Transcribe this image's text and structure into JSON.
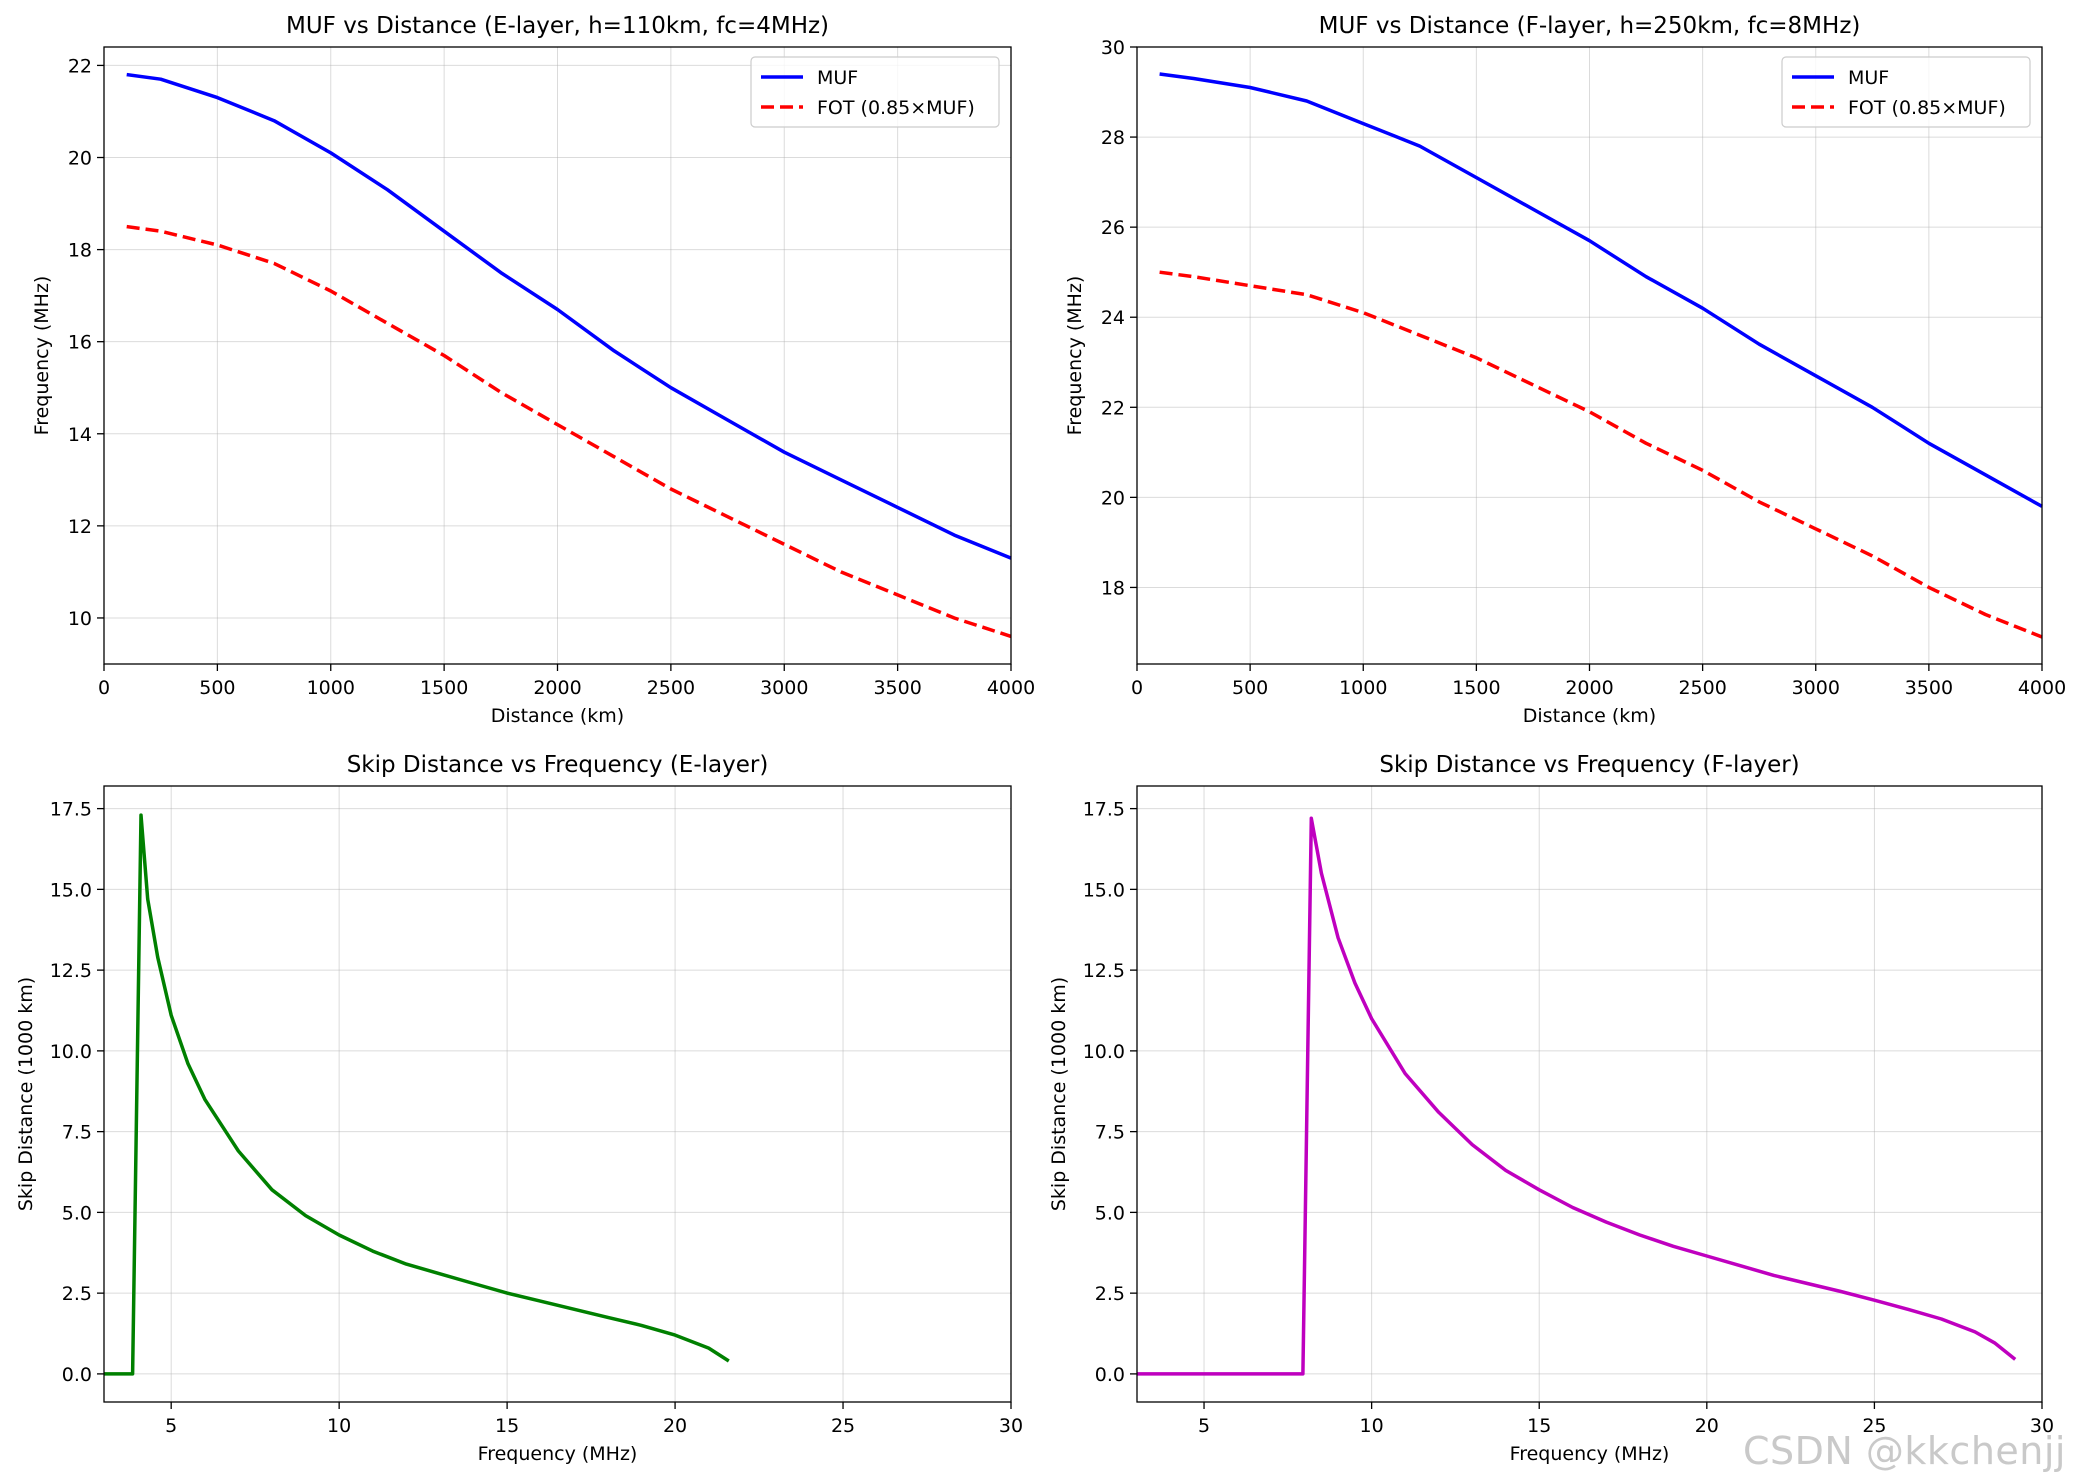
{
  "figure": {
    "watermark": "CSDN @kkchenjj"
  },
  "colors": {
    "muf": "#0000ff",
    "fot": "#ff0000",
    "skip_e": "#008000",
    "skip_f": "#bf00bf",
    "grid": "#b0b0b0"
  },
  "chart_data": [
    {
      "type": "line",
      "title": "MUF vs Distance (E-layer, h=110km, fc=4MHz)",
      "xlabel": "Distance (km)",
      "ylabel": "Frequency (MHz)",
      "xlim": [
        0,
        4000
      ],
      "ylim": [
        9,
        22.4
      ],
      "xticks": [
        0,
        500,
        1000,
        1500,
        2000,
        2500,
        3000,
        3500,
        4000
      ],
      "yticks": [
        10,
        12,
        14,
        16,
        18,
        20,
        22
      ],
      "legend": "top-right",
      "x": [
        100,
        250,
        500,
        750,
        1000,
        1250,
        1500,
        1750,
        2000,
        2250,
        2500,
        2750,
        3000,
        3250,
        3500,
        3750,
        4000
      ],
      "series": [
        {
          "name": "MUF",
          "style": "solid",
          "color": "#0000ff",
          "values": [
            21.8,
            21.7,
            21.3,
            20.8,
            20.1,
            19.3,
            18.4,
            17.5,
            16.7,
            15.8,
            15.0,
            14.3,
            13.6,
            13.0,
            12.4,
            11.8,
            11.3
          ]
        },
        {
          "name": "FOT (0.85×MUF)",
          "style": "dashed",
          "color": "#ff0000",
          "values": [
            18.5,
            18.4,
            18.1,
            17.7,
            17.1,
            16.4,
            15.7,
            14.9,
            14.2,
            13.5,
            12.8,
            12.2,
            11.6,
            11.0,
            10.5,
            10.0,
            9.6
          ]
        }
      ]
    },
    {
      "type": "line",
      "title": "MUF vs Distance (F-layer, h=250km, fc=8MHz)",
      "xlabel": "Distance (km)",
      "ylabel": "Frequency (MHz)",
      "xlim": [
        0,
        4000
      ],
      "ylim": [
        16.3,
        30
      ],
      "xticks": [
        0,
        500,
        1000,
        1500,
        2000,
        2500,
        3000,
        3500,
        4000
      ],
      "yticks": [
        18,
        20,
        22,
        24,
        26,
        28,
        30
      ],
      "legend": "top-right",
      "x": [
        100,
        250,
        500,
        750,
        1000,
        1250,
        1500,
        1750,
        2000,
        2250,
        2500,
        2750,
        3000,
        3250,
        3500,
        3750,
        4000
      ],
      "series": [
        {
          "name": "MUF",
          "style": "solid",
          "color": "#0000ff",
          "values": [
            29.4,
            29.3,
            29.1,
            28.8,
            28.3,
            27.8,
            27.1,
            26.4,
            25.7,
            24.9,
            24.2,
            23.4,
            22.7,
            22.0,
            21.2,
            20.5,
            19.8
          ]
        },
        {
          "name": "FOT (0.85×MUF)",
          "style": "dashed",
          "color": "#ff0000",
          "values": [
            25.0,
            24.9,
            24.7,
            24.5,
            24.1,
            23.6,
            23.1,
            22.5,
            21.9,
            21.2,
            20.6,
            19.9,
            19.3,
            18.7,
            18.0,
            17.4,
            16.9
          ]
        }
      ]
    },
    {
      "type": "line",
      "title": "Skip Distance vs Frequency (E-layer)",
      "xlabel": "Frequency (MHz)",
      "ylabel": "Skip Distance (1000 km)",
      "xlim": [
        3,
        30
      ],
      "ylim": [
        -0.87,
        18.2
      ],
      "xticks": [
        5,
        10,
        15,
        20,
        25,
        30
      ],
      "yticks": [
        0.0,
        2.5,
        5.0,
        7.5,
        10.0,
        12.5,
        15.0,
        17.5
      ],
      "legend": "none",
      "series": [
        {
          "name": "Skip Distance",
          "style": "solid",
          "color": "#008000",
          "x": [
            3.0,
            3.8,
            3.85,
            4.1,
            4.3,
            4.6,
            5.0,
            5.5,
            6.0,
            7.0,
            8.0,
            9.0,
            10.0,
            11.0,
            12.0,
            13.0,
            14.0,
            15.0,
            16.0,
            17.0,
            18.0,
            19.0,
            20.0,
            21.0,
            21.6
          ],
          "values": [
            0.0,
            0.0,
            0.0,
            17.3,
            14.7,
            12.9,
            11.1,
            9.6,
            8.5,
            6.9,
            5.7,
            4.9,
            4.3,
            3.8,
            3.4,
            3.1,
            2.8,
            2.5,
            2.25,
            2.0,
            1.75,
            1.5,
            1.2,
            0.8,
            0.4
          ]
        }
      ]
    },
    {
      "type": "line",
      "title": "Skip Distance vs Frequency (F-layer)",
      "xlabel": "Frequency (MHz)",
      "ylabel": "Skip Distance (1000 km)",
      "xlim": [
        3,
        30
      ],
      "ylim": [
        -0.87,
        18.2
      ],
      "xticks": [
        5,
        10,
        15,
        20,
        25,
        30
      ],
      "yticks": [
        0.0,
        2.5,
        5.0,
        7.5,
        10.0,
        12.5,
        15.0,
        17.5
      ],
      "legend": "none",
      "series": [
        {
          "name": "Skip Distance",
          "style": "solid",
          "color": "#bf00bf",
          "x": [
            3.0,
            7.9,
            7.95,
            8.2,
            8.5,
            9.0,
            9.5,
            10.0,
            11.0,
            12.0,
            13.0,
            14.0,
            15.0,
            16.0,
            17.0,
            18.0,
            19.0,
            20.0,
            21.0,
            22.0,
            23.0,
            24.0,
            25.0,
            26.0,
            27.0,
            28.0,
            28.6,
            29.2
          ],
          "values": [
            0.0,
            0.0,
            0.0,
            17.2,
            15.5,
            13.5,
            12.1,
            11.0,
            9.3,
            8.1,
            7.1,
            6.3,
            5.7,
            5.15,
            4.7,
            4.3,
            3.95,
            3.65,
            3.35,
            3.05,
            2.8,
            2.55,
            2.28,
            2.0,
            1.7,
            1.3,
            0.95,
            0.45
          ]
        }
      ]
    }
  ]
}
